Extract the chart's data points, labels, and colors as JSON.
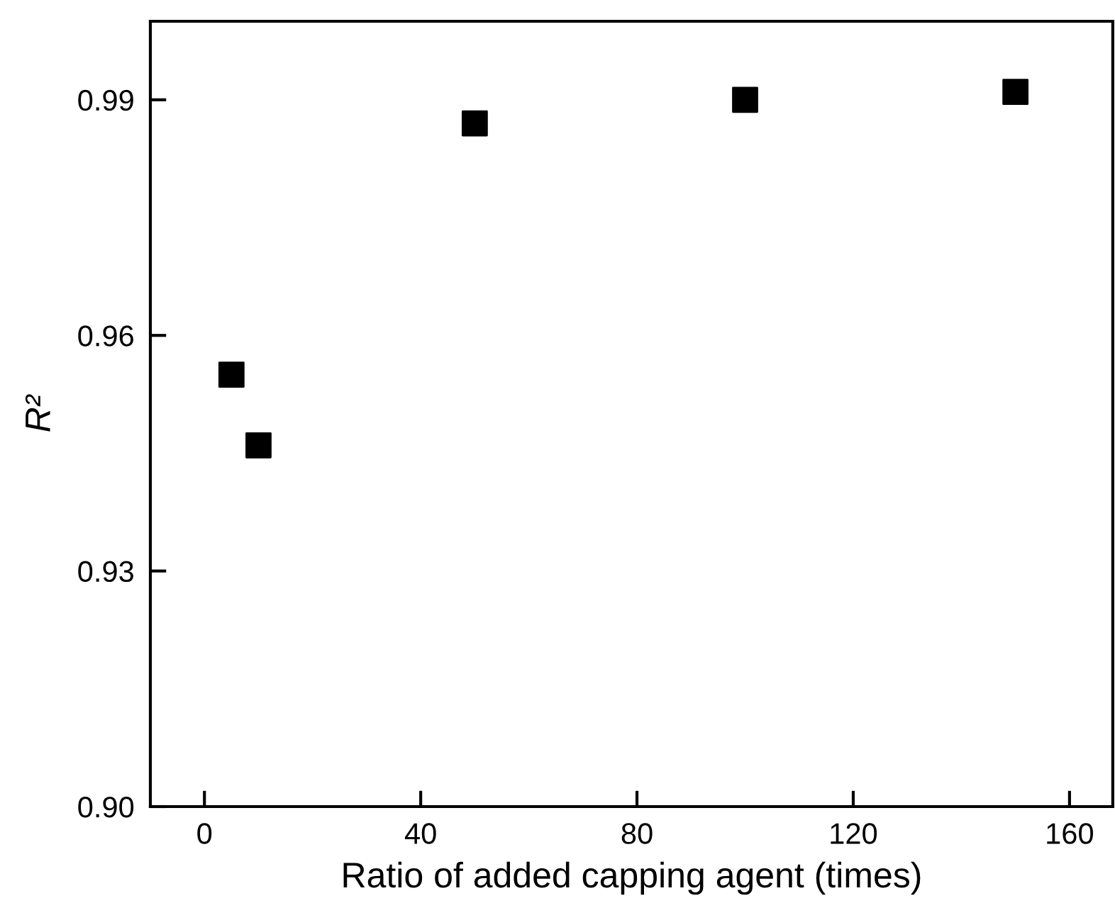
{
  "chart_data": {
    "type": "scatter",
    "xlabel": "Ratio of added capping agent (times)",
    "ylabel": "R²",
    "x": [
      5,
      10,
      50,
      100,
      150
    ],
    "series": [
      {
        "color": "#000000",
        "values": [
          0.955,
          0.946,
          0.987,
          0.99,
          0.991
        ]
      }
    ],
    "marker": "square",
    "xlim": [
      -10,
      168
    ],
    "xticks": [
      0,
      40,
      80,
      120,
      160
    ],
    "ylim": [
      0.9,
      1.0
    ],
    "yticks": [
      {
        "value": 0.9,
        "label": "0.90"
      },
      {
        "value": 0.93,
        "label": "0.93"
      },
      {
        "value": 0.96,
        "label": "0.96"
      },
      {
        "value": 0.99,
        "label": "0.99"
      }
    ],
    "grid": false,
    "legend": false
  }
}
